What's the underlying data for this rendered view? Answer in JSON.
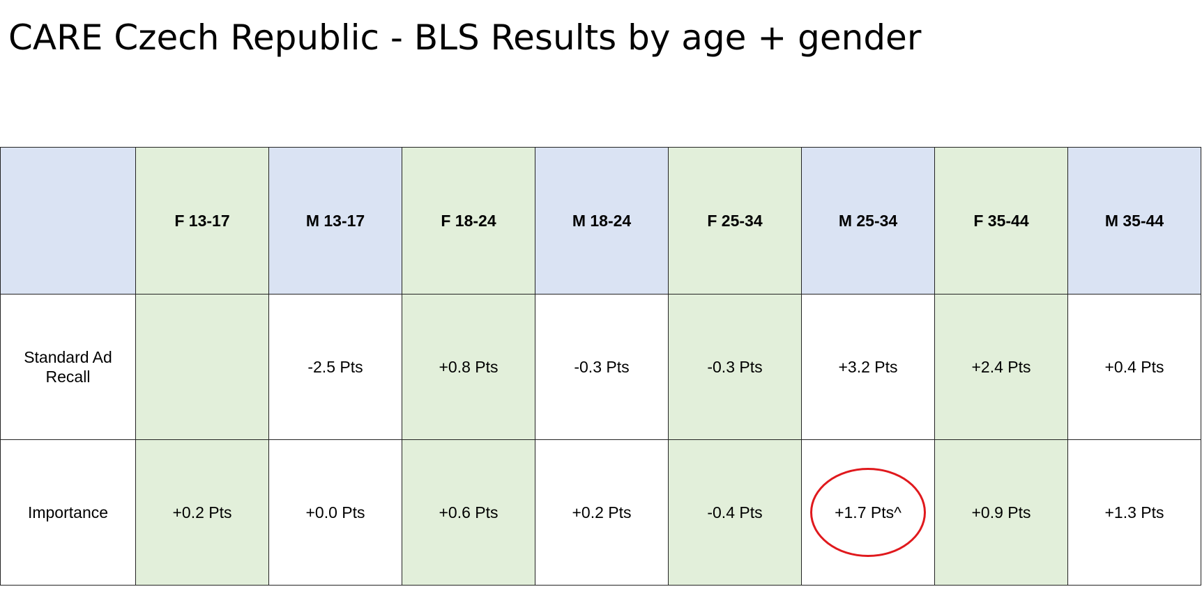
{
  "title": "CARE Czech Republic - BLS Results by age + gender",
  "colors": {
    "male_column": "#dae3f3",
    "female_column": "#e2efda",
    "highlight_circle": "#e0191d"
  },
  "table": {
    "corner": "",
    "columns": [
      "F 13-17",
      "M 13-17",
      "F 18-24",
      "M 18-24",
      "F 25-34",
      "M 25-34",
      "F 35-44",
      "M 35-44"
    ],
    "rows": [
      {
        "label": "Standard Ad Recall",
        "cells": [
          "",
          "-2.5 Pts",
          "+0.8 Pts",
          "-0.3 Pts",
          "-0.3 Pts",
          "+3.2 Pts",
          "+2.4 Pts",
          "+0.4 Pts"
        ]
      },
      {
        "label": "Importance",
        "cells": [
          "+0.2 Pts",
          "+0.0 Pts",
          "+0.6 Pts",
          "+0.2 Pts",
          "-0.4 Pts",
          "+1.7 Pts^",
          "+0.9 Pts",
          "+1.3 Pts"
        ]
      }
    ],
    "circled_cell": "Importance / M 25-34"
  }
}
